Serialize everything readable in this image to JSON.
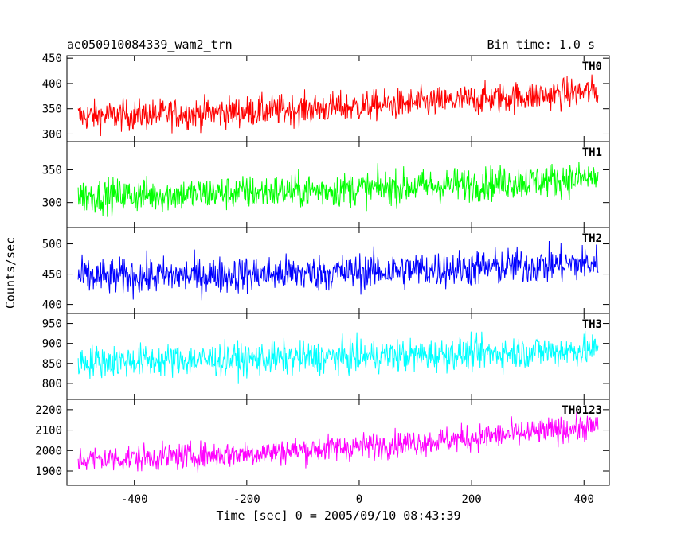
{
  "chart_data": {
    "type": "line",
    "title": "ae050910084339_wam2_trn",
    "bin_time_label": "Bin time: 1.0 s",
    "xlabel": "Time [sec] 0 = 2005/09/10 08:43:39",
    "ylabel": "Counts/sec",
    "xlim": [
      -520,
      445
    ],
    "x_range": [
      -500,
      425
    ],
    "x_ticks": [
      -400,
      -200,
      0,
      200,
      400
    ],
    "grid": false,
    "panels": [
      {
        "name": "TH0",
        "color": "#ff0000",
        "ylim": [
          285,
          455
        ],
        "y_ticks": [
          300,
          350,
          400,
          450
        ],
        "trend_start": 335,
        "trend_end": 385,
        "spread": 28
      },
      {
        "name": "TH1",
        "color": "#00ff00",
        "ylim": [
          262,
          393
        ],
        "y_ticks": [
          300,
          350
        ],
        "trend_start": 310,
        "trend_end": 338,
        "spread": 24
      },
      {
        "name": "TH2",
        "color": "#0000ff",
        "ylim": [
          385,
          527
        ],
        "y_ticks": [
          400,
          450,
          500
        ],
        "trend_start": 445,
        "trend_end": 468,
        "spread": 28
      },
      {
        "name": "TH3",
        "color": "#00ffff",
        "ylim": [
          760,
          975
        ],
        "y_ticks": [
          800,
          850,
          900,
          950
        ],
        "trend_start": 855,
        "trend_end": 885,
        "spread": 38
      },
      {
        "name": "TH0123",
        "color": "#ff00ff",
        "ylim": [
          1830,
          2250
        ],
        "y_ticks": [
          1900,
          2000,
          2100,
          2200
        ],
        "trend_start": 1955,
        "trend_end": 2120,
        "spread": 60
      }
    ]
  }
}
